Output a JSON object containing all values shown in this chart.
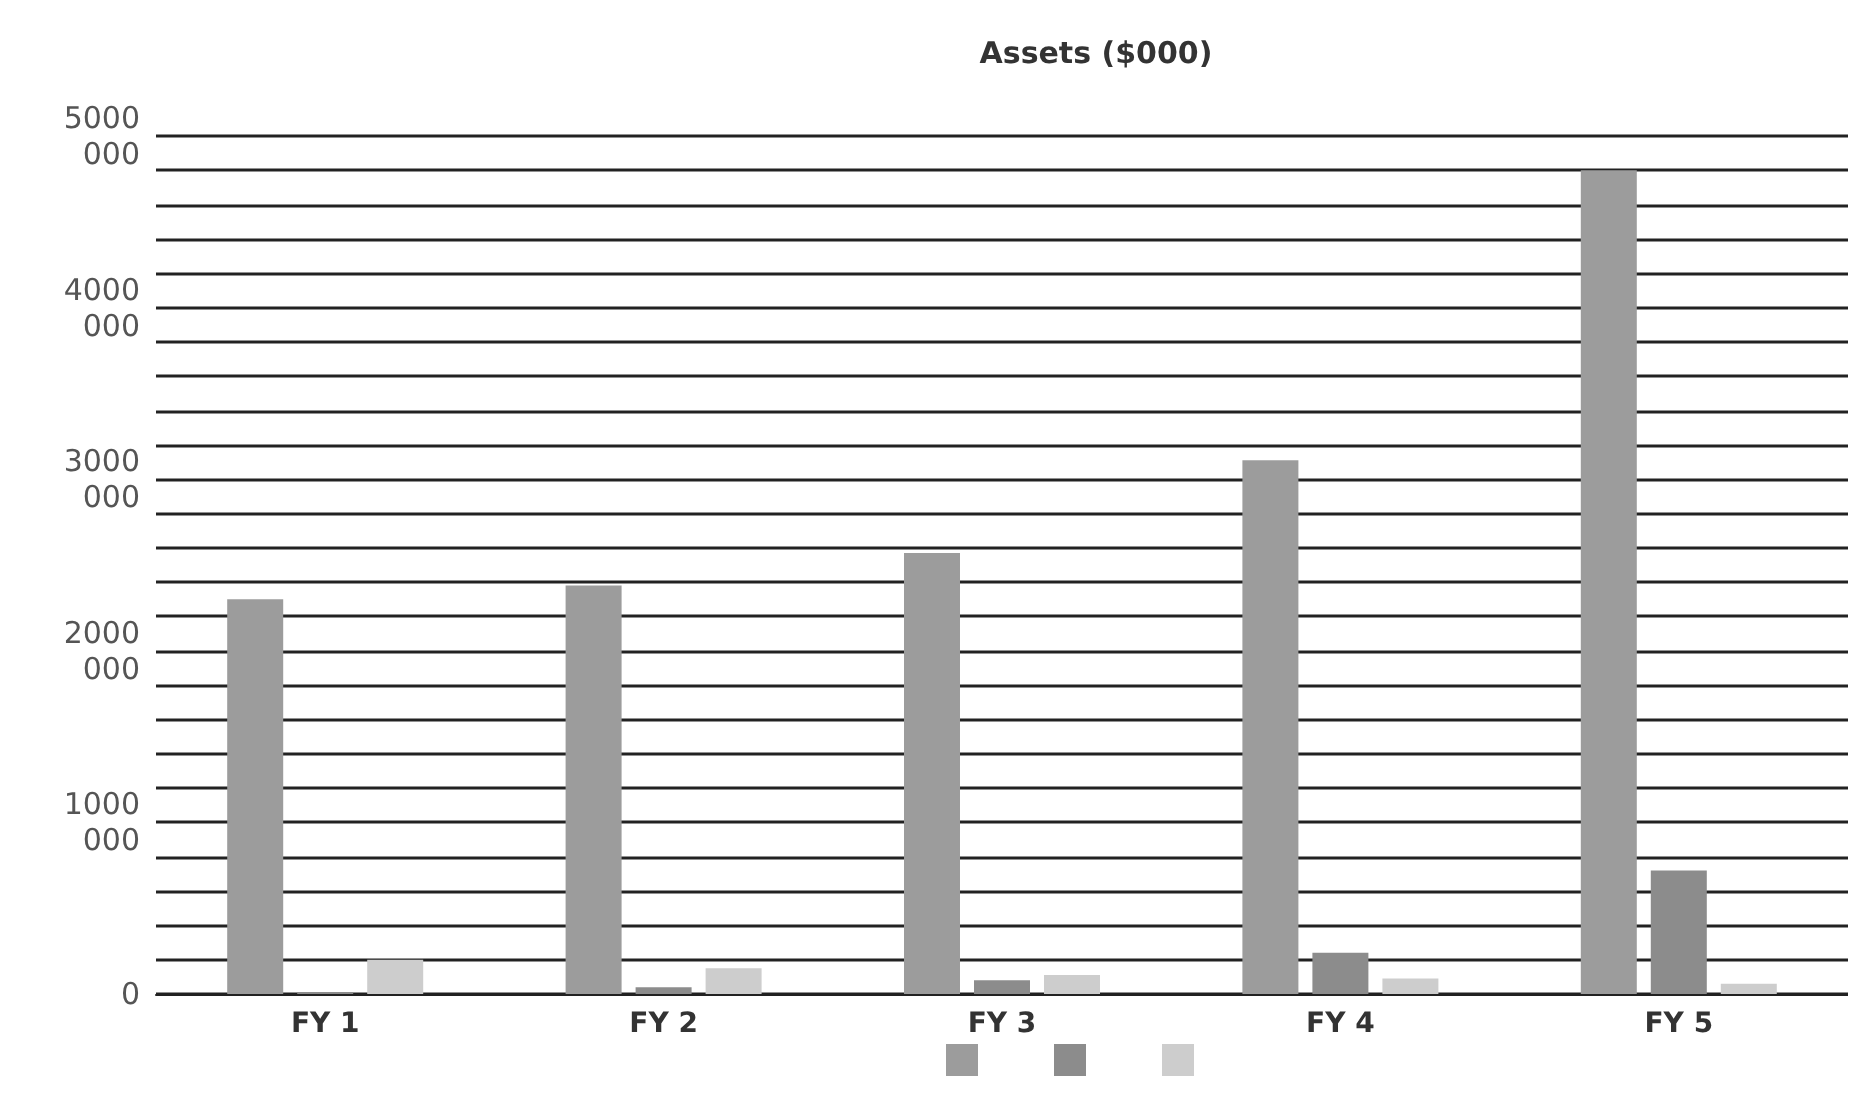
{
  "chart_data": {
    "type": "bar",
    "title": "Assets ($000)",
    "categories": [
      "FY 1",
      "FY 2",
      "FY 3",
      "FY 4",
      "FY 5"
    ],
    "series": [
      {
        "color": "#9c9c9c",
        "values": [
          2300000,
          2380000,
          2570000,
          3110000,
          4800000
        ]
      },
      {
        "color": "#8c8c8c",
        "values": [
          10000,
          40000,
          80000,
          240000,
          720000
        ]
      },
      {
        "color": "#cdcdcd",
        "values": [
          200000,
          150000,
          110000,
          90000,
          60000
        ]
      }
    ],
    "ylim": [
      0,
      5000000
    ],
    "yticks": [
      0,
      {
        "value": 200000,
        "label": null
      },
      {
        "value": 400000,
        "label": null
      },
      {
        "value": 600000,
        "label": null
      },
      {
        "value": 800000,
        "label": null
      },
      {
        "value": 1000000,
        "label": "1000 000"
      },
      {
        "value": 1200000,
        "label": null
      },
      {
        "value": 1400000,
        "label": null
      },
      {
        "value": 1600000,
        "label": null
      },
      {
        "value": 1800000,
        "label": null
      },
      {
        "value": 2000000,
        "label": "2000 000"
      },
      {
        "value": 2200000,
        "label": null
      },
      {
        "value": 2400000,
        "label": null
      },
      {
        "value": 2600000,
        "label": null
      },
      {
        "value": 2800000,
        "label": null
      },
      {
        "value": 3000000,
        "label": "3000 000"
      },
      {
        "value": 3200000,
        "label": null
      },
      {
        "value": 3400000,
        "label": null
      },
      {
        "value": 3600000,
        "label": null
      },
      {
        "value": 3800000,
        "label": null
      },
      {
        "value": 4000000,
        "label": "4000 000"
      },
      {
        "value": 4200000,
        "label": null
      },
      {
        "value": 4400000,
        "label": null
      },
      {
        "value": 4600000,
        "label": null
      },
      {
        "value": 4800000,
        "label": null
      },
      {
        "value": 5000000,
        "label": "5000 000"
      }
    ],
    "grid": "y"
  }
}
